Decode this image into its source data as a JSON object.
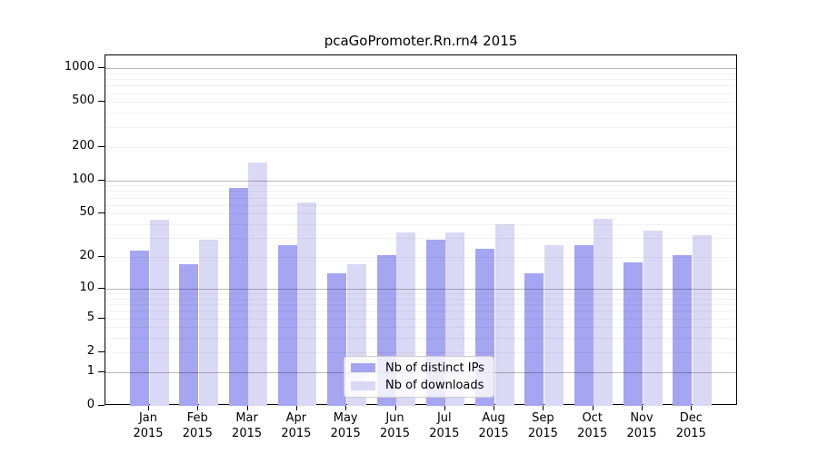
{
  "chart_data": {
    "type": "bar",
    "title": "pcaGoPromoter.Rn.rn4 2015",
    "categories": [
      "Jan 2015",
      "Feb 2015",
      "Mar 2015",
      "Apr 2015",
      "May 2015",
      "Jun 2015",
      "Jul 2015",
      "Aug 2015",
      "Sep 2015",
      "Oct 2015",
      "Nov 2015",
      "Dec 2015"
    ],
    "series": [
      {
        "name": "Nb of distinct IPs",
        "color": "#a5a5f2",
        "values": [
          23,
          17,
          85,
          26,
          14,
          21,
          29,
          24,
          14,
          26,
          18,
          21
        ]
      },
      {
        "name": "Nb of downloads",
        "color": "#d9d9f6",
        "values": [
          44,
          29,
          143,
          63,
          17,
          34,
          34,
          40,
          26,
          45,
          35,
          32
        ]
      }
    ],
    "xlabel": "",
    "ylabel": "",
    "y_ticks": [
      1000,
      500,
      200,
      100,
      50,
      20,
      10,
      5,
      2,
      1,
      0
    ],
    "y_scale": "log10(value+1)",
    "ylim": [
      0,
      1300
    ],
    "grid": "horizontal major (1,10,100,1000) dark + minor (2-9 per decade) light, drawn over bars",
    "legend_position": "inside lower-center",
    "colors": {
      "axis": "#000000",
      "major_grid": "#b8b8b8",
      "minor_grid": "#ececec",
      "background": "#ffffff",
      "legend_border": "#cccccc"
    }
  }
}
